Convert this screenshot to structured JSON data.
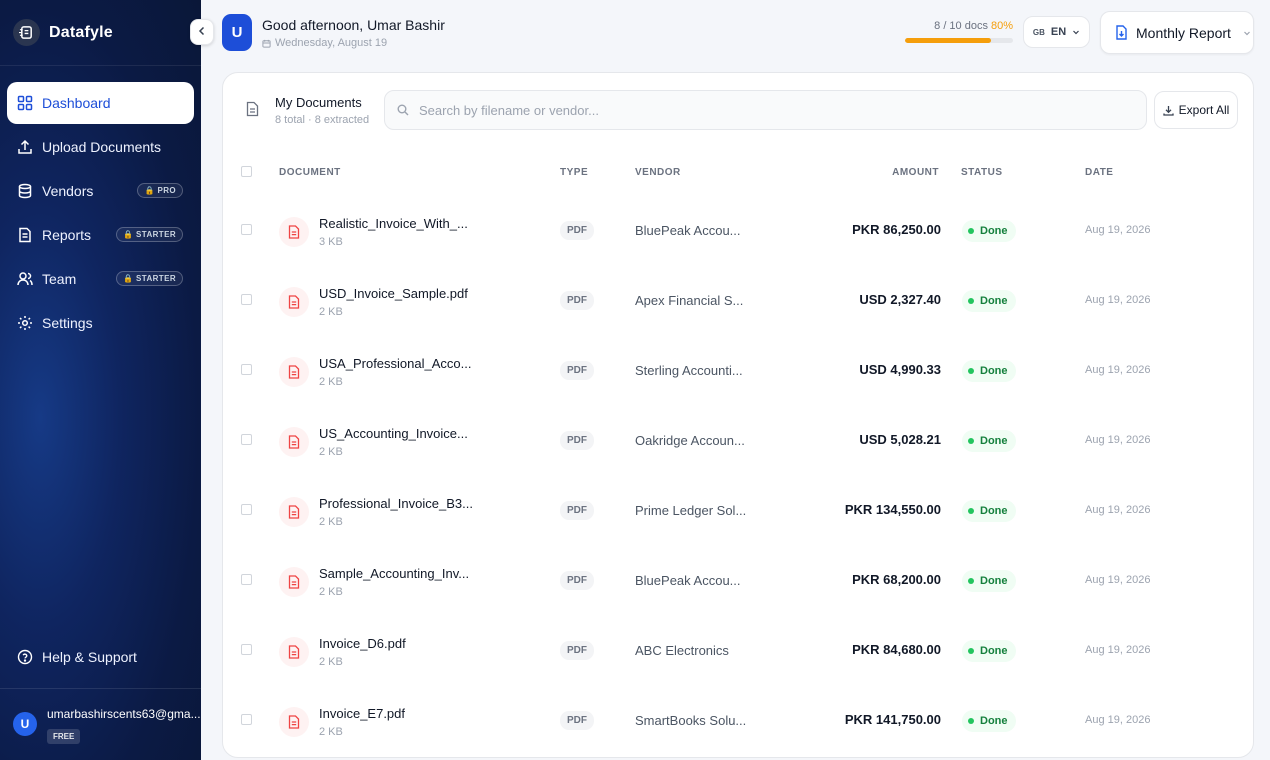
{
  "sidebar": {
    "brand": "Datafyle",
    "items": [
      {
        "label": "Dashboard",
        "badge": "",
        "active": true
      },
      {
        "label": "Upload Documents",
        "badge": ""
      },
      {
        "label": "Vendors",
        "badge": "PRO"
      },
      {
        "label": "Reports",
        "badge": "STARTER"
      },
      {
        "label": "Team",
        "badge": "STARTER"
      },
      {
        "label": "Settings",
        "badge": ""
      }
    ],
    "help": "Help & Support",
    "user": {
      "initial": "U",
      "email": "umarbashirscents63@gma...",
      "plan": "FREE"
    }
  },
  "header": {
    "avatar_initial": "U",
    "greeting": "Good afternoon, Umar Bashir",
    "date": "Wednesday, August 19",
    "quota_text": "8 / 10 docs",
    "quota_pct": "80%",
    "quota_fraction": 0.8,
    "lang_flag": "GB",
    "lang": "EN",
    "report_button": "Monthly Report"
  },
  "documents": {
    "title": "My Documents",
    "subtitle": "8 total · 8 extracted",
    "search_placeholder": "Search by filename or vendor...",
    "export_label": "Export All",
    "columns": {
      "document": "DOCUMENT",
      "type": "TYPE",
      "vendor": "VENDOR",
      "amount": "AMOUNT",
      "status": "STATUS",
      "date": "DATE"
    },
    "rows": [
      {
        "name": "Realistic_Invoice_With_...",
        "size": "3 KB",
        "type": "PDF",
        "vendor": "BluePeak Accou...",
        "amount": "PKR 86,250.00",
        "status": "Done",
        "date": "Aug 19, 2026"
      },
      {
        "name": "USD_Invoice_Sample.pdf",
        "size": "2 KB",
        "type": "PDF",
        "vendor": "Apex Financial S...",
        "amount": "USD 2,327.40",
        "status": "Done",
        "date": "Aug 19, 2026"
      },
      {
        "name": "USA_Professional_Acco...",
        "size": "2 KB",
        "type": "PDF",
        "vendor": "Sterling Accounti...",
        "amount": "USD 4,990.33",
        "status": "Done",
        "date": "Aug 19, 2026"
      },
      {
        "name": "US_Accounting_Invoice...",
        "size": "2 KB",
        "type": "PDF",
        "vendor": "Oakridge Accoun...",
        "amount": "USD 5,028.21",
        "status": "Done",
        "date": "Aug 19, 2026"
      },
      {
        "name": "Professional_Invoice_B3...",
        "size": "2 KB",
        "type": "PDF",
        "vendor": "Prime Ledger Sol...",
        "amount": "PKR 134,550.00",
        "status": "Done",
        "date": "Aug 19, 2026"
      },
      {
        "name": "Sample_Accounting_Inv...",
        "size": "2 KB",
        "type": "PDF",
        "vendor": "BluePeak Accou...",
        "amount": "PKR 68,200.00",
        "status": "Done",
        "date": "Aug 19, 2026"
      },
      {
        "name": "Invoice_D6.pdf",
        "size": "2 KB",
        "type": "PDF",
        "vendor": "ABC Electronics",
        "amount": "PKR 84,680.00",
        "status": "Done",
        "date": "Aug 19, 2026"
      },
      {
        "name": "Invoice_E7.pdf",
        "size": "2 KB",
        "type": "PDF",
        "vendor": "SmartBooks Solu...",
        "amount": "PKR 141,750.00",
        "status": "Done",
        "date": "Aug 19, 2026"
      }
    ]
  },
  "colors": {
    "brand_blue": "#1d4ed8",
    "sidebar_bg": "#0f2560",
    "quota_amber": "#f59e0b",
    "status_green": "#22c55e",
    "pdf_red": "#ef4444"
  }
}
